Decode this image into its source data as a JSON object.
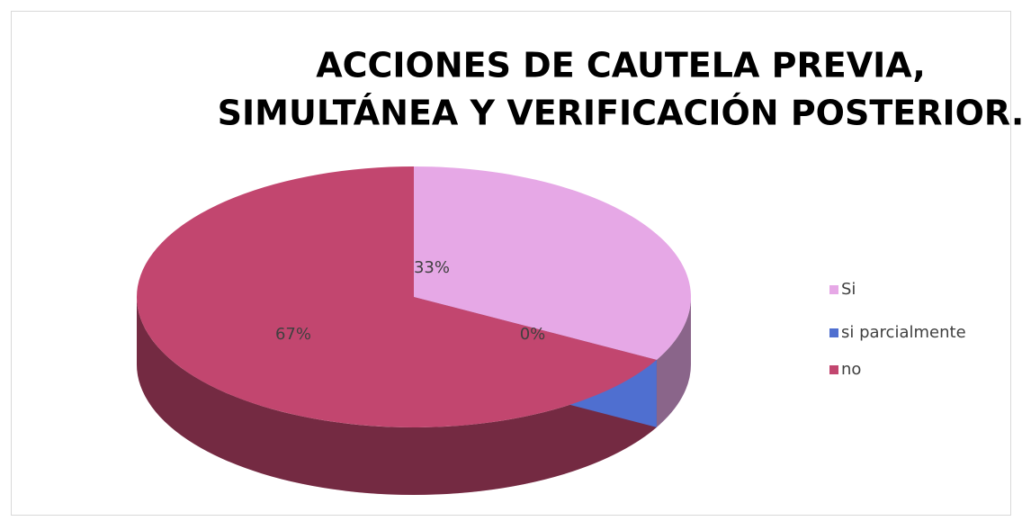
{
  "chart_data": {
    "type": "pie",
    "title": [
      "ACCIONES DE CAUTELA PREVIA,",
      "SIMULTÁNEA Y VERIFICACIÓN POSTERIOR."
    ],
    "categories": [
      "Si",
      "si parcialmente",
      "no"
    ],
    "values": [
      33,
      0,
      67
    ],
    "value_labels": [
      "33%",
      "0%",
      "67%"
    ],
    "colors": [
      "#e6a8e6",
      "#4f6fd0",
      "#c2466f"
    ],
    "legend": "right"
  }
}
